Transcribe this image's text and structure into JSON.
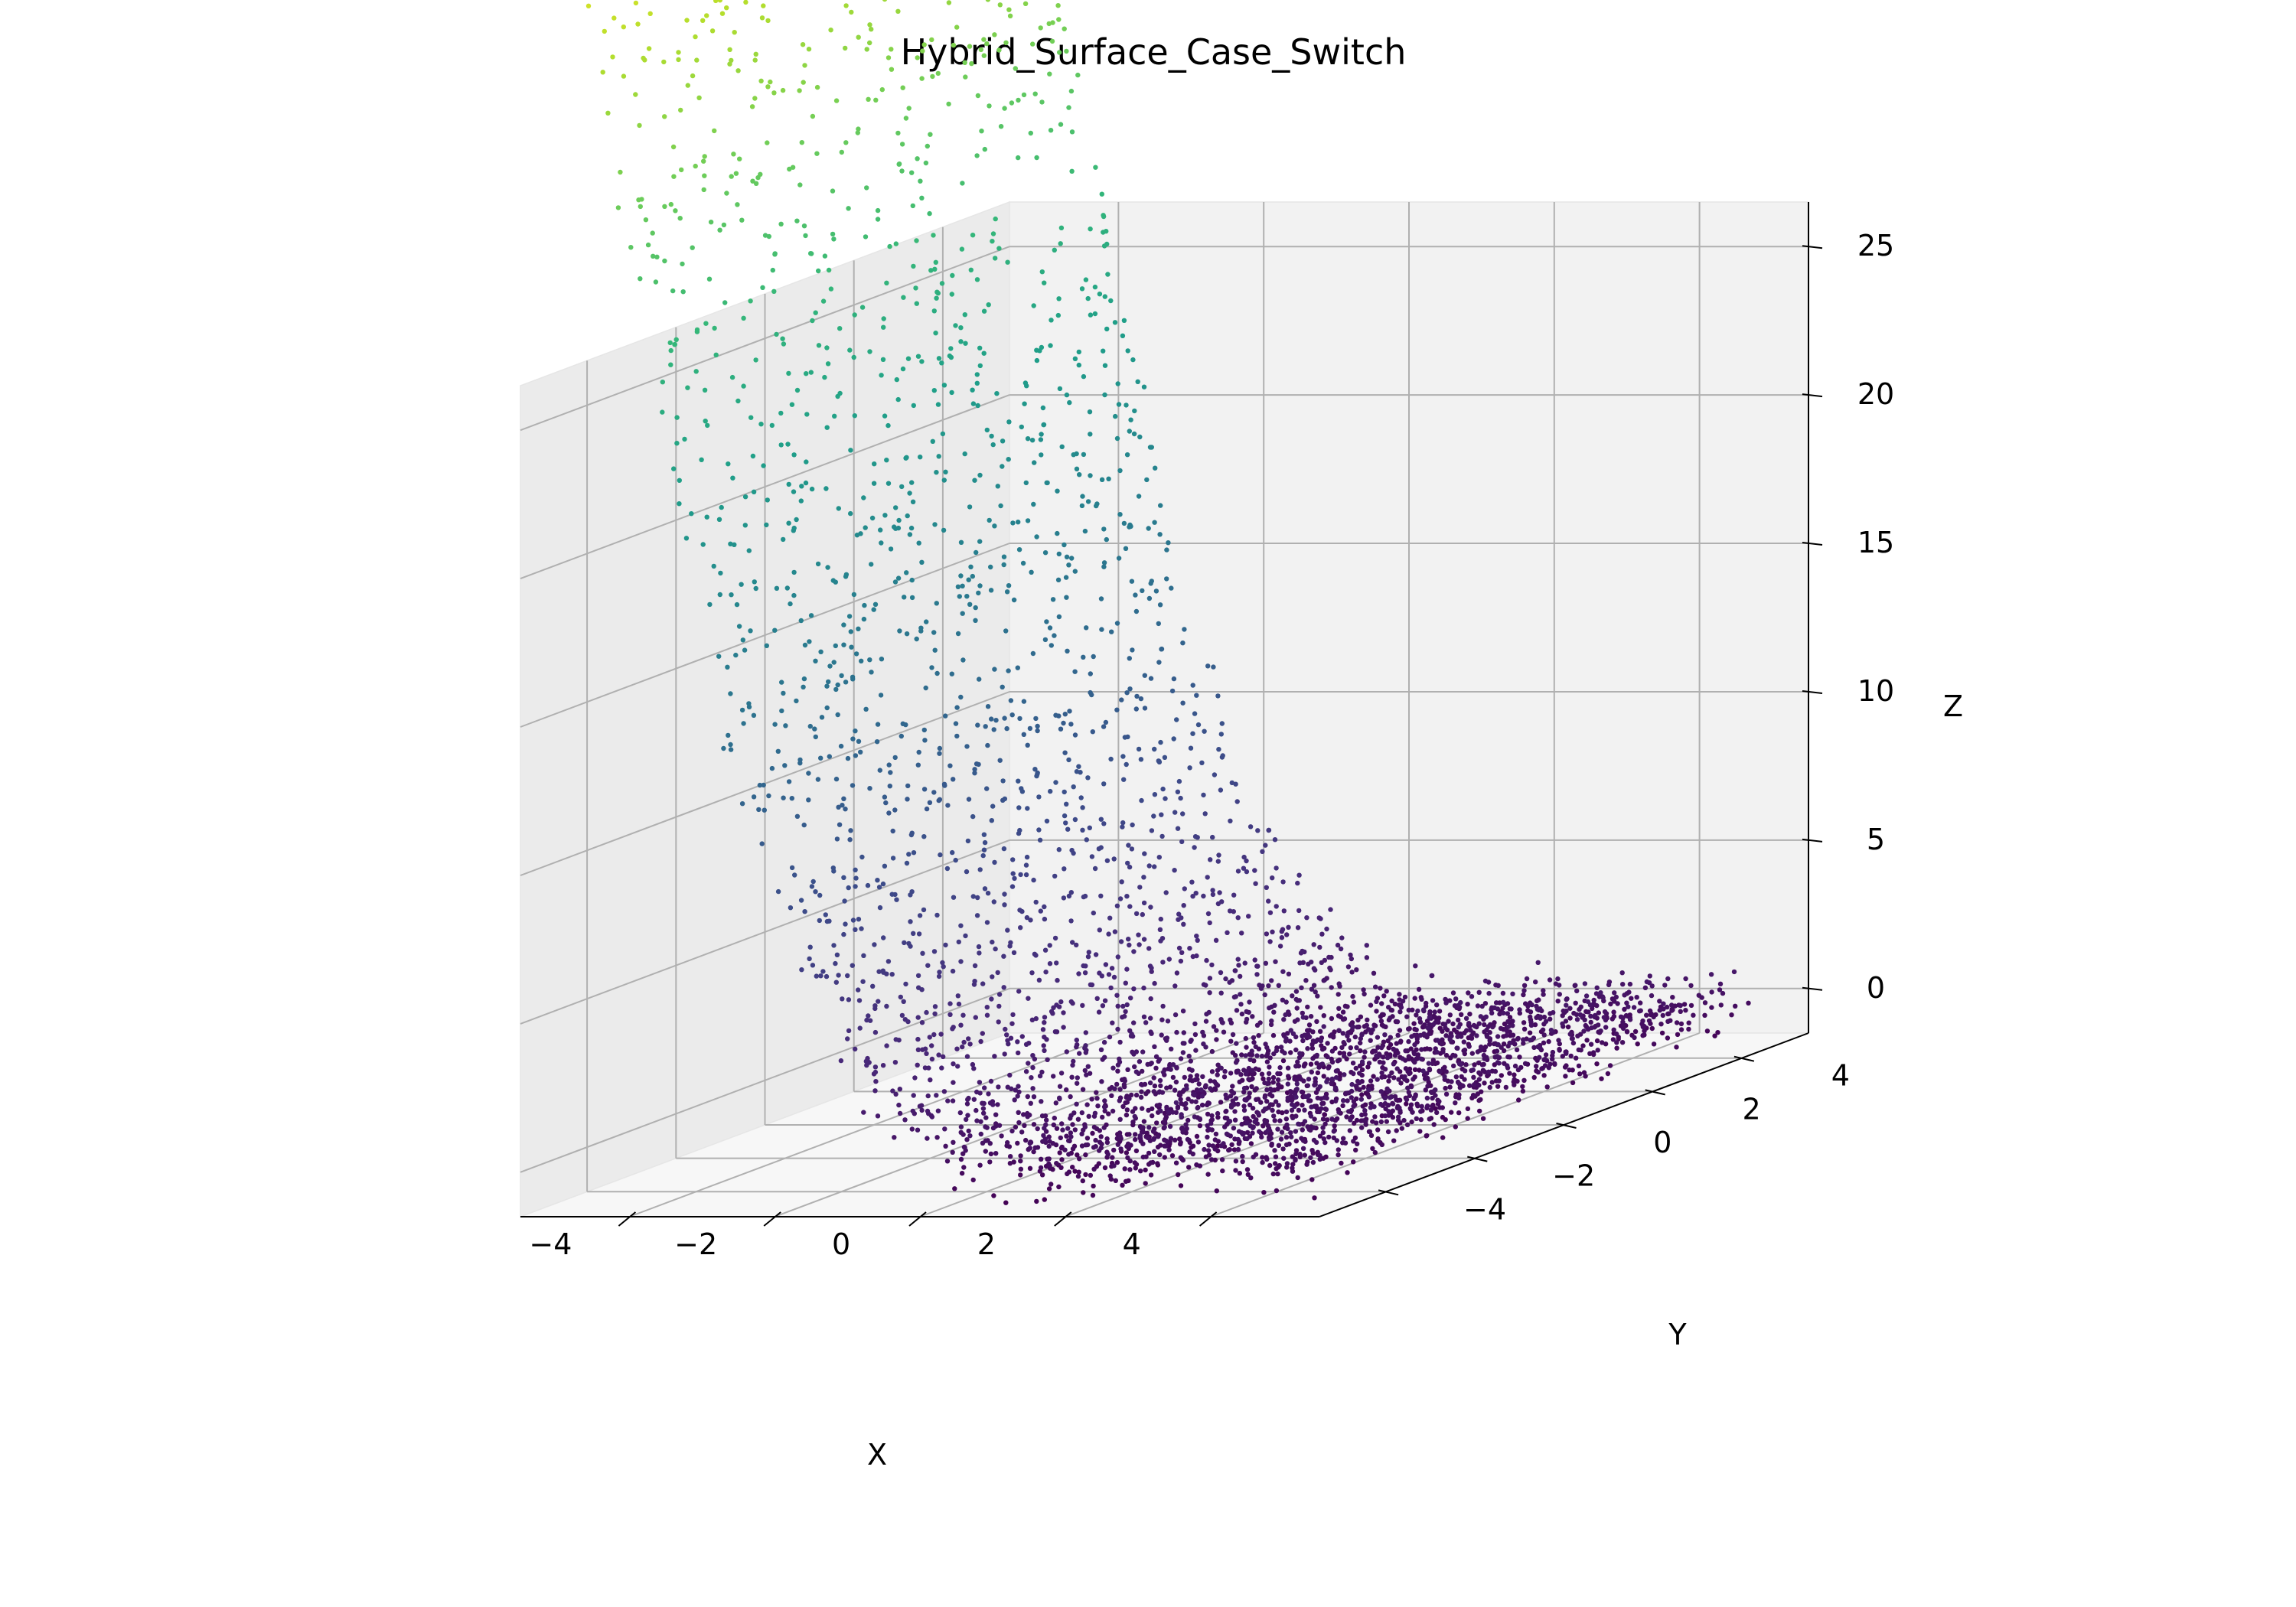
{
  "chart_data": {
    "type": "scatter",
    "projection": "3d",
    "title": "Hybrid_Surface_Case_Switch",
    "xlabel": "X",
    "ylabel": "Y",
    "zlabel": "Z",
    "xlim": [
      -5.5,
      5.5
    ],
    "ylim": [
      -5.5,
      5.5
    ],
    "zlim": [
      -1.5,
      26.5
    ],
    "x_ticks": [
      -4,
      -2,
      0,
      2,
      4
    ],
    "y_ticks": [
      -4,
      -2,
      0,
      2,
      4
    ],
    "z_ticks": [
      0,
      5,
      10,
      15,
      20,
      25
    ],
    "x_tick_labels": [
      "−4",
      "−2",
      "0",
      "2",
      "4"
    ],
    "y_tick_labels": [
      "−4",
      "−2",
      "0",
      "2",
      "4"
    ],
    "z_tick_labels": [
      "0",
      "5",
      "10",
      "15",
      "20",
      "25"
    ],
    "grid": true,
    "colormap": "viridis",
    "color_by": "z",
    "pane_colors": {
      "xz": "#f2f2f2",
      "yz": "#ebebeb",
      "xy": "#f7f7f7"
    },
    "surface_samples": [
      {
        "x": -5,
        "y": -5,
        "z": 22
      },
      {
        "x": -5,
        "y": 5,
        "z": 25
      },
      {
        "x": -3,
        "y": 0,
        "z": 13
      },
      {
        "x": -1,
        "y": 0,
        "z": 5
      },
      {
        "x": 0,
        "y": 0,
        "z": 1
      },
      {
        "x": 2,
        "y": 0,
        "z": 0
      },
      {
        "x": 5,
        "y": 5,
        "z": 0
      },
      {
        "x": 5,
        "y": -5,
        "z": 0
      }
    ],
    "num_points": 4000
  }
}
